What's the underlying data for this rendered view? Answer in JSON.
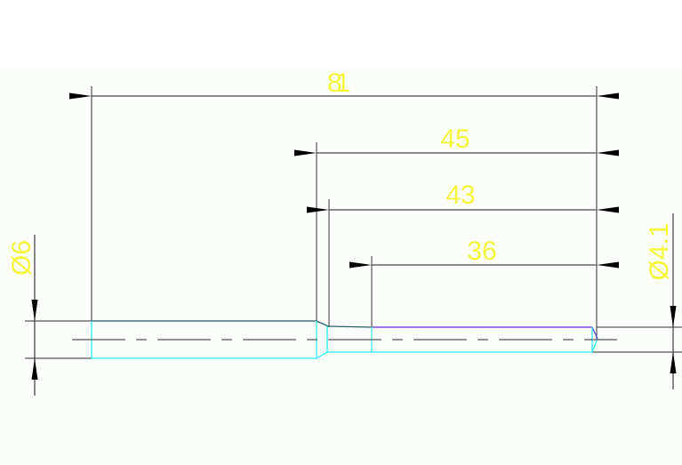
{
  "drawing": {
    "colors": {
      "dimension_text": "#f5f53a",
      "part_outline": "#00e5f0",
      "upper_edge": "#1f5f66",
      "thread_edge": "#7a4fd6",
      "dimension_line": "#4a4a4a"
    },
    "dimensions": {
      "overall_length": "81",
      "length_45": "45",
      "length_43": "43",
      "length_36": "36",
      "diameter_left": "Ø6",
      "diameter_right": "Ø4.1"
    }
  }
}
